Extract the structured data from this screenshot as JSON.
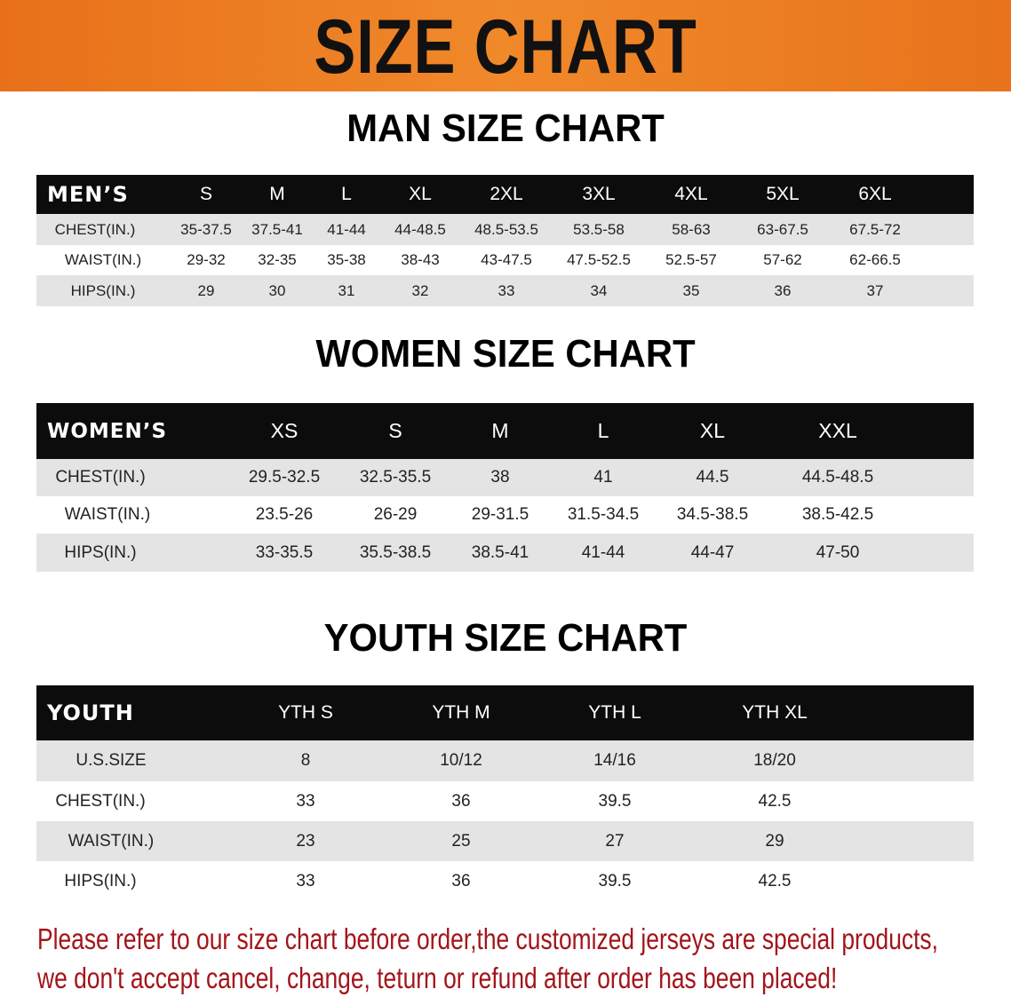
{
  "banner": {
    "title": "SIZE CHART",
    "color": "#ee7f22"
  },
  "men": {
    "title": "MAN SIZE CHART",
    "header": [
      "MEN’S",
      "S",
      "M",
      "L",
      "XL",
      "2XL",
      "3XL",
      "4XL",
      "5XL",
      "6XL"
    ],
    "rows": [
      [
        "CHEST(IN.)",
        "35-37.5",
        "37.5-41",
        "41-44",
        "44-48.5",
        "48.5-53.5",
        "53.5-58",
        "58-63",
        "63-67.5",
        "67.5-72"
      ],
      [
        "WAIST(IN.)",
        "29-32",
        "32-35",
        "35-38",
        "38-43",
        "43-47.5",
        "47.5-52.5",
        "52.5-57",
        "57-62",
        "62-66.5"
      ],
      [
        "HIPS(IN.)",
        "29",
        "30",
        "31",
        "32",
        "33",
        "34",
        "35",
        "36",
        "37"
      ]
    ]
  },
  "women": {
    "title": "WOMEN SIZE CHART",
    "header": [
      "WOMEN’S",
      "XS",
      "S",
      "M",
      "L",
      "XL",
      "XXL"
    ],
    "rows": [
      [
        "CHEST(IN.)",
        "29.5-32.5",
        "32.5-35.5",
        "38",
        "41",
        "44.5",
        "44.5-48.5"
      ],
      [
        "WAIST(IN.)",
        "23.5-26",
        "26-29",
        "29-31.5",
        "31.5-34.5",
        "34.5-38.5",
        "38.5-42.5"
      ],
      [
        "HIPS(IN.)",
        "33-35.5",
        "35.5-38.5",
        "38.5-41",
        "41-44",
        "44-47",
        "47-50"
      ]
    ]
  },
  "youth": {
    "title": "YOUTH SIZE CHART",
    "header": [
      "YOUTH",
      "YTH S",
      "YTH M",
      "YTH L",
      "YTH XL"
    ],
    "rows": [
      [
        "U.S.SIZE",
        "8",
        "10/12",
        "14/16",
        "18/20"
      ],
      [
        "CHEST(IN.)",
        "33",
        "36",
        "39.5",
        "42.5"
      ],
      [
        "WAIST(IN.)",
        "23",
        "25",
        "27",
        "29"
      ],
      [
        "HIPS(IN.)",
        "33",
        "36",
        "39.5",
        "42.5"
      ]
    ]
  },
  "footer": {
    "line1": "Please refer to our size chart before order,the customized jerseys are special products,",
    "line2": "we don't accept cancel, change, teturn or refund after order has been placed!",
    "color": "#a3141a"
  }
}
